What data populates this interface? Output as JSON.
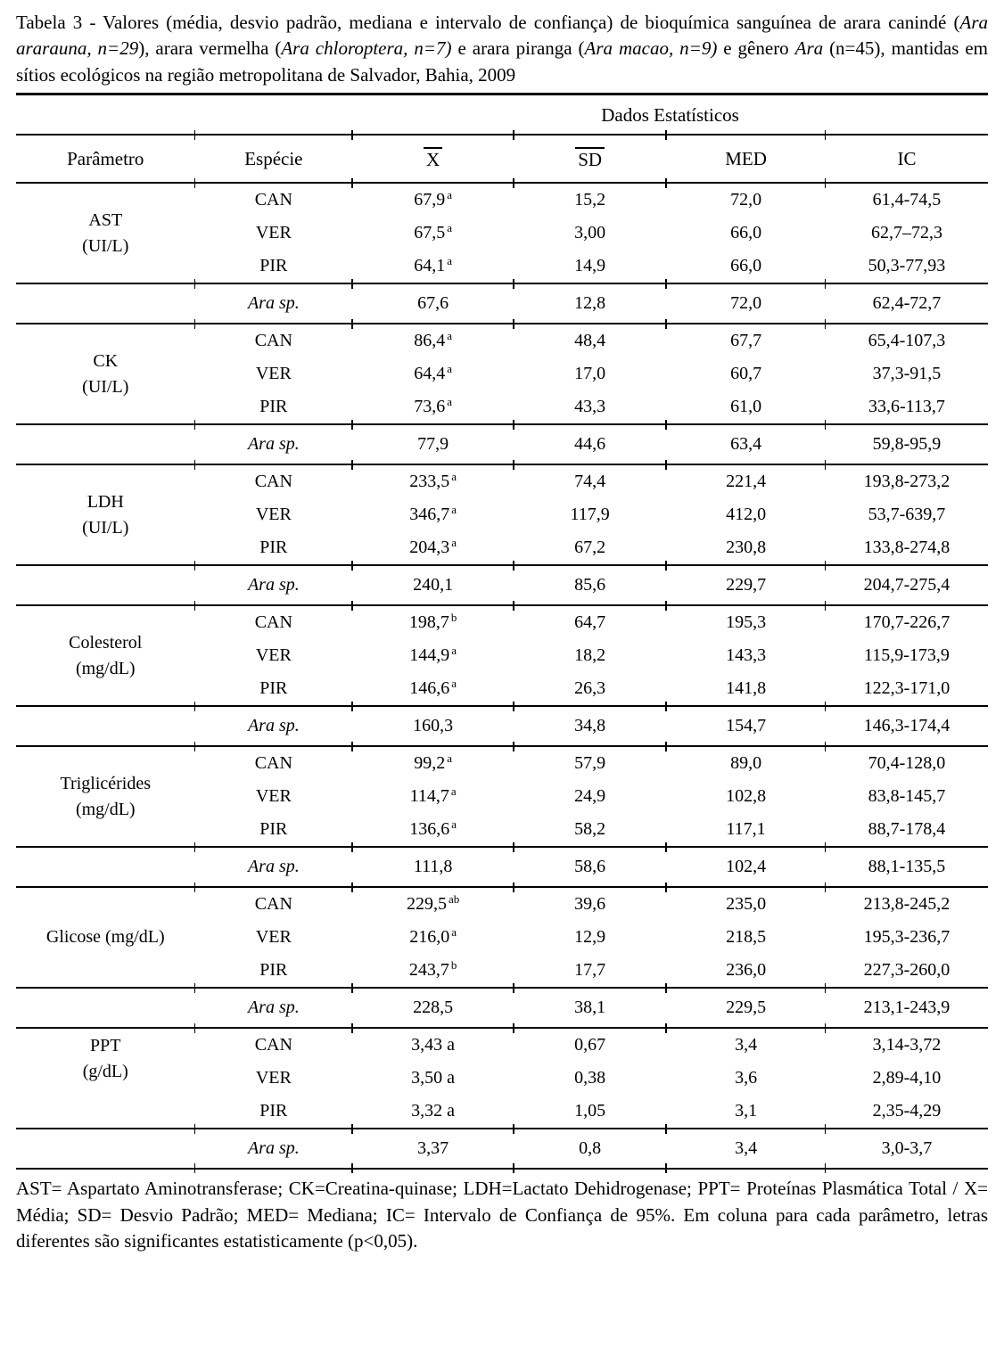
{
  "caption": {
    "segments": [
      {
        "text": "Tabela 3 - Valores (média, desvio padrão, mediana e intervalo de confiança) de bioquímica sanguínea de arara canindé (",
        "italic": false
      },
      {
        "text": "Ara ararauna, n=29",
        "italic": true
      },
      {
        "text": "), arara vermelha (",
        "italic": false
      },
      {
        "text": "Ara chloroptera, n=7)",
        "italic": true
      },
      {
        "text": " e arara piranga (",
        "italic": false
      },
      {
        "text": "Ara macao, n=9)",
        "italic": true
      },
      {
        "text": " e gênero ",
        "italic": false
      },
      {
        "text": "Ara",
        "italic": true
      },
      {
        "text": " (n=45), mantidas em sítios ecológicos na região metropolitana de Salvador, Bahia, 2009",
        "italic": false
      }
    ]
  },
  "table": {
    "span_header": "Dados Estatísticos",
    "columns": [
      {
        "label": "Parâmetro",
        "overline": false
      },
      {
        "label": "Espécie",
        "overline": false
      },
      {
        "label": "X",
        "overline": true
      },
      {
        "label": "SD",
        "overline": true
      },
      {
        "label": "MED",
        "overline": false
      },
      {
        "label": "IC",
        "overline": false
      }
    ],
    "groups": [
      {
        "param": [
          "AST",
          "(UI/L)"
        ],
        "valign": "middle",
        "rows": [
          {
            "especie": "CAN",
            "mean": "67,9",
            "sup": "a",
            "sd": "15,2",
            "med": "72,0",
            "ic": "61,4-74,5"
          },
          {
            "especie": "VER",
            "mean": "67,5",
            "sup": "a",
            "sd": "3,00",
            "med": "66,0",
            "ic": "62,7–72,3"
          },
          {
            "especie": "PIR",
            "mean": "64,1",
            "sup": "a",
            "sd": "14,9",
            "med": "66,0",
            "ic": "50,3-77,93"
          }
        ],
        "summary": {
          "especie": "Ara sp.",
          "mean": "67,6",
          "sup": "",
          "sd": "12,8",
          "med": "72,0",
          "ic": "62,4-72,7"
        }
      },
      {
        "param": [
          "CK",
          "(UI/L)"
        ],
        "valign": "middle",
        "rows": [
          {
            "especie": "CAN",
            "mean": "86,4",
            "sup": "a",
            "sd": "48,4",
            "med": "67,7",
            "ic": "65,4-107,3"
          },
          {
            "especie": "VER",
            "mean": "64,4",
            "sup": "a",
            "sd": "17,0",
            "med": "60,7",
            "ic": "37,3-91,5"
          },
          {
            "especie": "PIR",
            "mean": "73,6",
            "sup": "a",
            "sd": "43,3",
            "med": "61,0",
            "ic": "33,6-113,7"
          }
        ],
        "summary": {
          "especie": "Ara sp.",
          "mean": "77,9",
          "sup": "",
          "sd": "44,6",
          "med": "63,4",
          "ic": "59,8-95,9"
        }
      },
      {
        "param": [
          "LDH",
          "(UI/L)"
        ],
        "valign": "middle",
        "rows": [
          {
            "especie": "CAN",
            "mean": "233,5",
            "sup": "a",
            "sd": "74,4",
            "med": "221,4",
            "ic": "193,8-273,2"
          },
          {
            "especie": "VER",
            "mean": "346,7",
            "sup": "a",
            "sd": "117,9",
            "med": "412,0",
            "ic": "53,7-639,7"
          },
          {
            "especie": "PIR",
            "mean": "204,3",
            "sup": "a",
            "sd": "67,2",
            "med": "230,8",
            "ic": "133,8-274,8"
          }
        ],
        "summary": {
          "especie": "Ara sp.",
          "mean": "240,1",
          "sup": "",
          "sd": "85,6",
          "med": "229,7",
          "ic": "204,7-275,4"
        }
      },
      {
        "param": [
          "Colesterol",
          "(mg/dL)"
        ],
        "valign": "middle",
        "rows": [
          {
            "especie": "CAN",
            "mean": "198,7",
            "sup": "b",
            "sd": "64,7",
            "med": "195,3",
            "ic": "170,7-226,7"
          },
          {
            "especie": "VER",
            "mean": "144,9",
            "sup": "a",
            "sd": "18,2",
            "med": "143,3",
            "ic": "115,9-173,9"
          },
          {
            "especie": "PIR",
            "mean": "146,6",
            "sup": "a",
            "sd": "26,3",
            "med": "141,8",
            "ic": "122,3-171,0"
          }
        ],
        "summary": {
          "especie": "Ara sp.",
          "mean": "160,3",
          "sup": "",
          "sd": "34,8",
          "med": "154,7",
          "ic": "146,3-174,4"
        }
      },
      {
        "param": [
          "Triglicérides",
          "(mg/dL)"
        ],
        "valign": "middle",
        "rows": [
          {
            "especie": "CAN",
            "mean": "99,2",
            "sup": "a",
            "sd": "57,9",
            "med": "89,0",
            "ic": "70,4-128,0"
          },
          {
            "especie": "VER",
            "mean": "114,7",
            "sup": "a",
            "sd": "24,9",
            "med": "102,8",
            "ic": "83,8-145,7"
          },
          {
            "especie": "PIR",
            "mean": "136,6",
            "sup": "a",
            "sd": "58,2",
            "med": "117,1",
            "ic": "88,7-178,4"
          }
        ],
        "summary": {
          "especie": "Ara sp.",
          "mean": "111,8",
          "sup": "",
          "sd": "58,6",
          "med": "102,4",
          "ic": "88,1-135,5"
        }
      },
      {
        "param": [
          "Glicose (mg/dL)"
        ],
        "valign": "middle",
        "rows": [
          {
            "especie": "CAN",
            "mean": "229,5",
            "sup": "ab",
            "sd": "39,6",
            "med": "235,0",
            "ic": "213,8-245,2"
          },
          {
            "especie": "VER",
            "mean": "216,0",
            "sup": "a",
            "sd": "12,9",
            "med": "218,5",
            "ic": "195,3-236,7"
          },
          {
            "especie": "PIR",
            "mean": "243,7",
            "sup": "b",
            "sd": "17,7",
            "med": "236,0",
            "ic": "227,3-260,0"
          }
        ],
        "summary": {
          "especie": "Ara sp.",
          "mean": "228,5",
          "sup": "",
          "sd": "38,1",
          "med": "229,5",
          "ic": "213,1-243,9"
        }
      },
      {
        "param": [
          "PPT",
          "(g/dL)"
        ],
        "valign": "top",
        "rows": [
          {
            "especie": "CAN",
            "mean": "3,43 a",
            "sup": "",
            "sd": "0,67",
            "med": "3,4",
            "ic": "3,14-3,72"
          },
          {
            "especie": "VER",
            "mean": "3,50 a",
            "sup": "",
            "sd": "0,38",
            "med": "3,6",
            "ic": "2,89-4,10"
          },
          {
            "especie": "PIR",
            "mean": "3,32 a",
            "sup": "",
            "sd": "1,05",
            "med": "3,1",
            "ic": "2,35-4,29"
          }
        ],
        "summary": {
          "especie": "Ara sp.",
          "mean": "3,37",
          "sup": "",
          "sd": "0,8",
          "med": "3,4",
          "ic": "3,0-3,7"
        }
      }
    ]
  },
  "footnote": "AST= Aspartato Aminotransferase; CK=Creatina-quinase; LDH=Lactato Dehidrogenase; PPT= Proteínas Plasmática Total / X= Média; SD= Desvio Padrão; MED= Mediana; IC= Intervalo de Confiança de 95%. Em coluna para cada parâmetro, letras diferentes são significantes estatisticamente (p<0,05)."
}
